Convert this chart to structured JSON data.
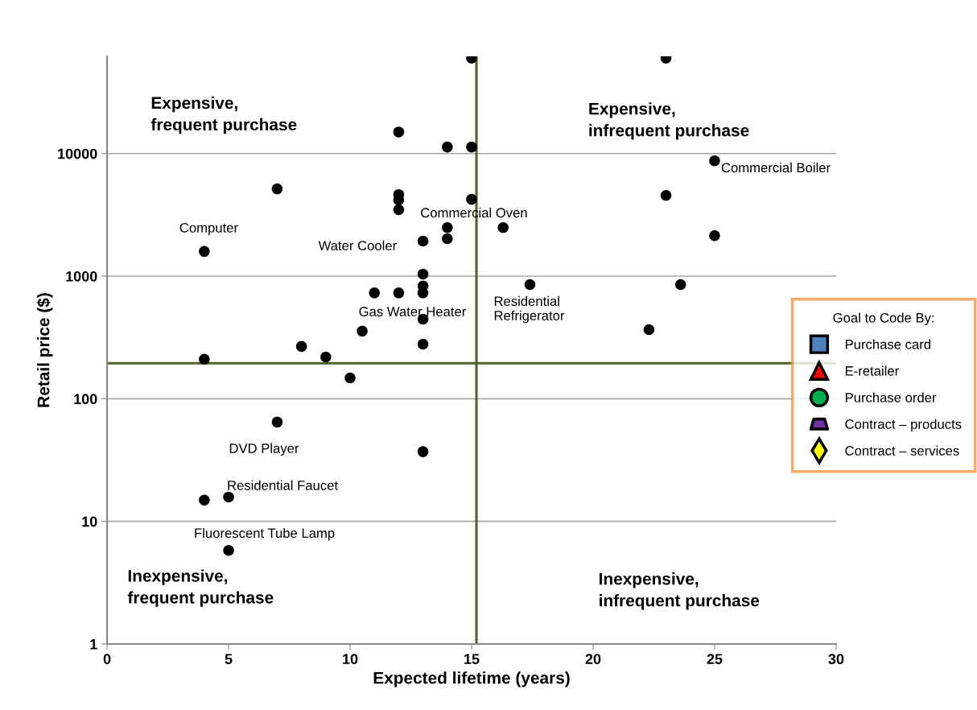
{
  "chart_data": {
    "type": "scatter",
    "xlabel": "Expected lifetime (years)",
    "ylabel": "Retail price ($)",
    "legend_title": "Goal to Code By:",
    "log": "y",
    "xlim": [
      0,
      30
    ],
    "ylim": [
      1,
      62000
    ],
    "xticks": [
      0,
      5,
      10,
      15,
      20,
      25,
      30
    ],
    "yticks": [
      1,
      10,
      100,
      1000,
      10000
    ],
    "grid": "y",
    "legend": "right",
    "marker": "circle",
    "series": [
      {
        "color": "#000000",
        "x": [
          15,
          12,
          14,
          15,
          7,
          12,
          12,
          12,
          15,
          14,
          14,
          13,
          16.3,
          4,
          13,
          11,
          12,
          13,
          13,
          13,
          10.5,
          13,
          8,
          9,
          4,
          10,
          7,
          13,
          4,
          5,
          5,
          23,
          25,
          23,
          25,
          17.4,
          23.6,
          22.3
        ],
        "values": [
          60000,
          15000,
          11300,
          11300,
          5150,
          4630,
          4170,
          3480,
          4230,
          2490,
          2020,
          1930,
          2490,
          1590,
          1040,
          730,
          730,
          830,
          730,
          446,
          356,
          279,
          267,
          219,
          210,
          148,
          64.5,
          37,
          14.9,
          15.8,
          5.8,
          60000,
          8730,
          4560,
          2140,
          853,
          853,
          366
        ]
      },
      {
        "name": "Purchase card",
        "color": "#4f81bd",
        "marker": "square"
      },
      {
        "name": "E-retailer",
        "color": "#ff0000",
        "marker": "triangle"
      },
      {
        "name": "Purchase order",
        "color": "#00b050",
        "marker": "circle"
      },
      {
        "name": "Contract – products",
        "color": "#7030a0",
        "marker": "trapezoid"
      },
      {
        "name": "Contract – services",
        "color": "#ffff00",
        "marker": "diamond"
      }
    ],
    "ref_lines": [
      {
        "axis": "y",
        "value": 195,
        "color": "#4f6228"
      },
      {
        "axis": "x",
        "value": 15.2,
        "color": "#4f6228"
      }
    ],
    "annotations": [
      "Expensive,\nfrequent purchase",
      "Expensive,\ninfrequent purchase",
      "Inexpensive,\nfrequent purchase",
      "Inexpensive,\ninfrequent purchase",
      {
        "text": "Computer",
        "x": 4,
        "y": 1590
      },
      {
        "text": "Water Cooler",
        "x": 13,
        "y": 1930
      },
      {
        "text": "Commercial Oven",
        "x": 16.3,
        "y": 2490
      },
      {
        "text": "Gas Water Heater",
        "x": 13,
        "y": 446
      },
      {
        "text": "Residential\nRefrigerator",
        "x": 17.4,
        "y": 853
      },
      {
        "text": "Commercial Boiler",
        "x": 25,
        "y": 8730
      },
      {
        "text": "DVD Player",
        "x": 7,
        "y": 64.5
      },
      {
        "text": "Residential Faucet",
        "x": 5,
        "y": 15.8
      },
      {
        "text": "Fluorescent Tube Lamp",
        "x": 5,
        "y": 5.8
      }
    ]
  }
}
